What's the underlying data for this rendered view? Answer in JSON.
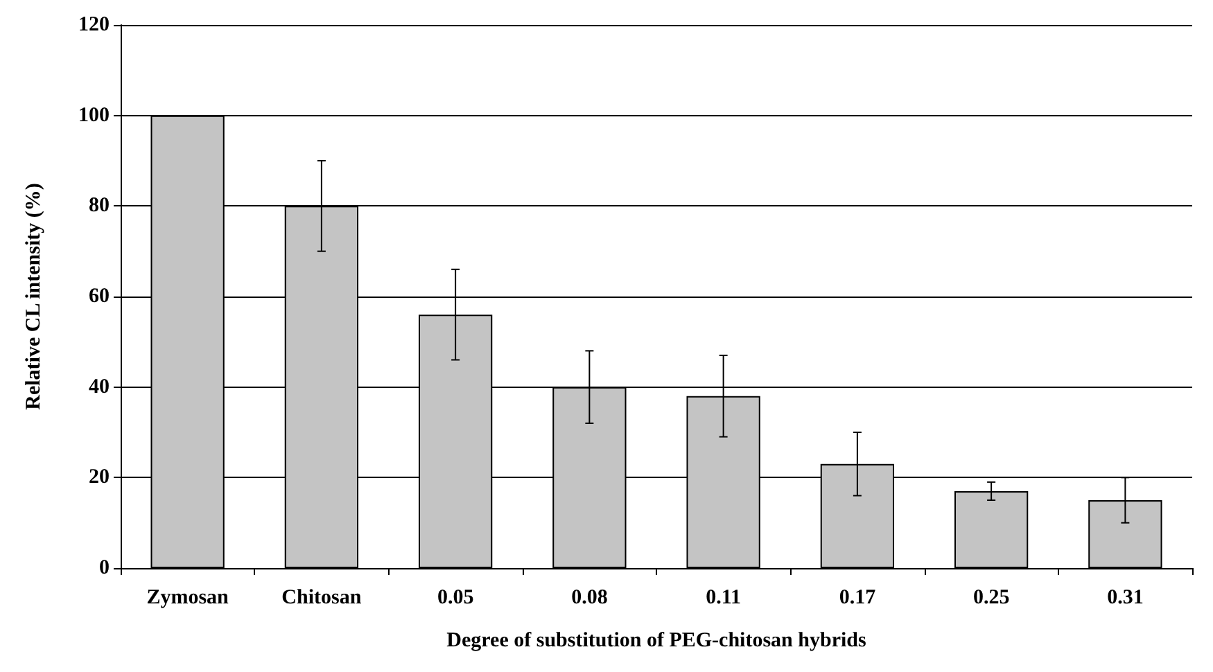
{
  "chart_data": {
    "type": "bar",
    "xlabel": "Degree of substitution of PEG-chitosan hybrids",
    "ylabel": "Relative CL intensity (%)",
    "categories": [
      "Zymosan",
      "Chitosan",
      "0.05",
      "0.08",
      "0.11",
      "0.17",
      "0.25",
      "0.31"
    ],
    "values": [
      100,
      80,
      56,
      40,
      38,
      23,
      17,
      15
    ],
    "errors": [
      null,
      10,
      10,
      8,
      9,
      7,
      2,
      5
    ],
    "color": "#c4c4c4",
    "ylim": [
      0,
      120
    ],
    "yticks": [
      0,
      20,
      40,
      60,
      80,
      100,
      120
    ],
    "grid": "y"
  }
}
